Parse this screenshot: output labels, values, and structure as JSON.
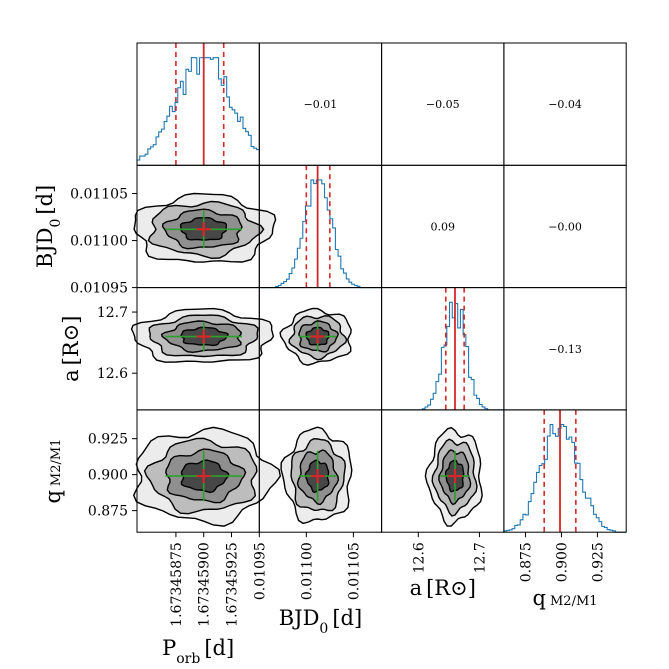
{
  "chart_data": {
    "type": "corner",
    "parameters": [
      {
        "key": "porb",
        "label": "P_orb [d]",
        "label_main": "P",
        "label_sub": "orb",
        "label_unit": "[d]",
        "truth": 1.673459,
        "ci_low": 1.67345875,
        "ci_high": 1.67345918,
        "range": [
          1.6734584,
          1.6734595
        ],
        "ticks": [
          "1.67345875",
          "1.67345900",
          "1.67345925"
        ],
        "tick_values": [
          1.67345875,
          1.673459,
          1.67345925
        ]
      },
      {
        "key": "bjd0",
        "label": "BJD_0 [d]",
        "label_main": "BJD",
        "label_sub": "0",
        "label_unit": "[d]",
        "truth": 0.011012,
        "ci_low": 0.011,
        "ci_high": 0.011025,
        "range": [
          0.01095,
          0.01108
        ],
        "ticks": [
          "0.01095",
          "0.01100",
          "0.01105"
        ],
        "tick_values": [
          0.01095,
          0.011,
          0.01105
        ]
      },
      {
        "key": "a",
        "label": "a [R⊙]",
        "label_main": "a",
        "label_sub": "",
        "label_unit": "[R⊙]",
        "truth": 12.66,
        "ci_low": 12.645,
        "ci_high": 12.675,
        "range": [
          12.54,
          12.74
        ],
        "ticks": [
          "12.6",
          "12.7"
        ],
        "tick_values": [
          12.6,
          12.7
        ]
      },
      {
        "key": "q",
        "label": "q M2/M1",
        "label_main": "q",
        "label_sub": "",
        "label_unit": "",
        "truth": 0.899,
        "ci_low": 0.888,
        "ci_high": 0.91,
        "range": [
          0.86,
          0.945
        ],
        "ticks": [
          "0.875",
          "0.900",
          "0.925"
        ],
        "tick_values": [
          0.875,
          0.9,
          0.925
        ]
      }
    ],
    "correlations": [
      {
        "row": 0,
        "col": 1,
        "value": "−0.01"
      },
      {
        "row": 0,
        "col": 2,
        "value": "−0.05"
      },
      {
        "row": 0,
        "col": 3,
        "value": "−0.04"
      },
      {
        "row": 1,
        "col": 2,
        "value": "0.09"
      },
      {
        "row": 1,
        "col": 3,
        "value": "−0.00"
      },
      {
        "row": 2,
        "col": 3,
        "value": "−0.13"
      }
    ],
    "colors": {
      "histogram": "#1f77b4",
      "truth_line": "#d62728",
      "crosshair": "#2ca02c",
      "marker": "#d62728",
      "contour_fills": [
        "#ececec",
        "#bdbdbd",
        "#8f8f8f",
        "#474747"
      ]
    }
  }
}
